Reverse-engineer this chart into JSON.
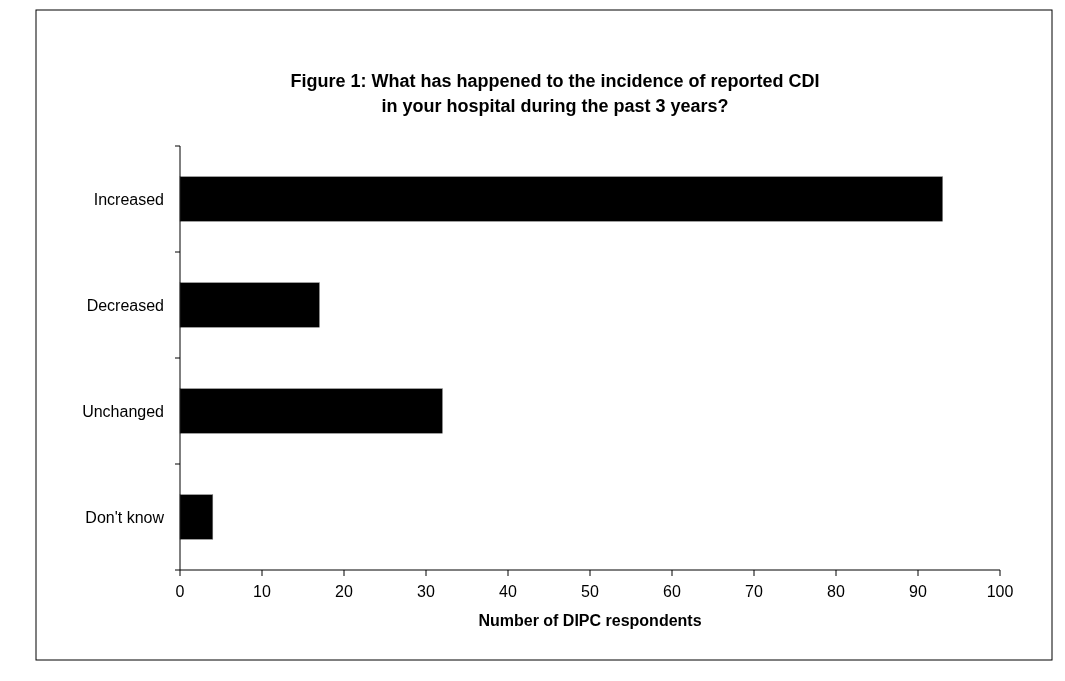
{
  "chart_data": {
    "type": "bar",
    "orientation": "horizontal",
    "title": "Figure 1: What has happened to the incidence of reported CDI\nin your hospital during the past 3 years?",
    "xlabel": "Number of DIPC respondents",
    "categories": [
      "Increased",
      "Decreased",
      "Unchanged",
      "Don't know"
    ],
    "values": [
      93,
      17,
      32,
      4
    ],
    "color": "#000000",
    "xlim": [
      0,
      100
    ],
    "xticks": [
      0,
      10,
      20,
      30,
      40,
      50,
      60,
      70,
      80,
      90,
      100
    ],
    "grid": false
  }
}
